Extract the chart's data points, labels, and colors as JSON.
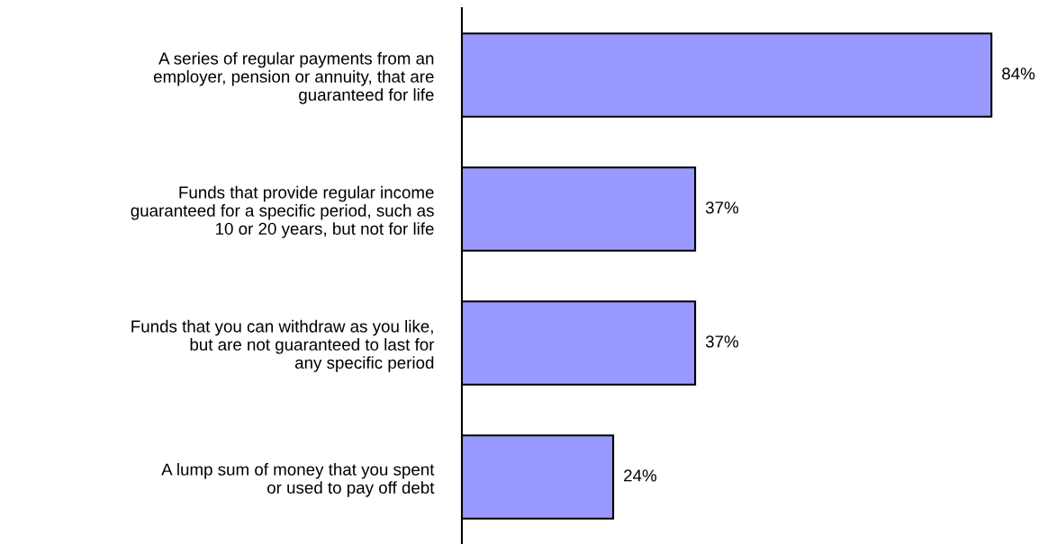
{
  "chart_data": {
    "type": "bar",
    "orientation": "horizontal",
    "categories": [
      "A series of regular payments from an\nemployer, pension or annuity, that are\nguaranteed for life",
      "Funds that provide regular income\nguaranteed for a specific period, such as\n10 or 20 years, but not for life",
      "Funds that you can withdraw as you like,\nbut are not guaranteed to last for\nany specific period",
      "A lump sum of money that you spent\nor used to pay off debt"
    ],
    "values": [
      84,
      37,
      37,
      24
    ],
    "value_labels": [
      "84%",
      "37%",
      "37%",
      "24%"
    ],
    "color": "#9999ff",
    "tick_labels": "y"
  }
}
